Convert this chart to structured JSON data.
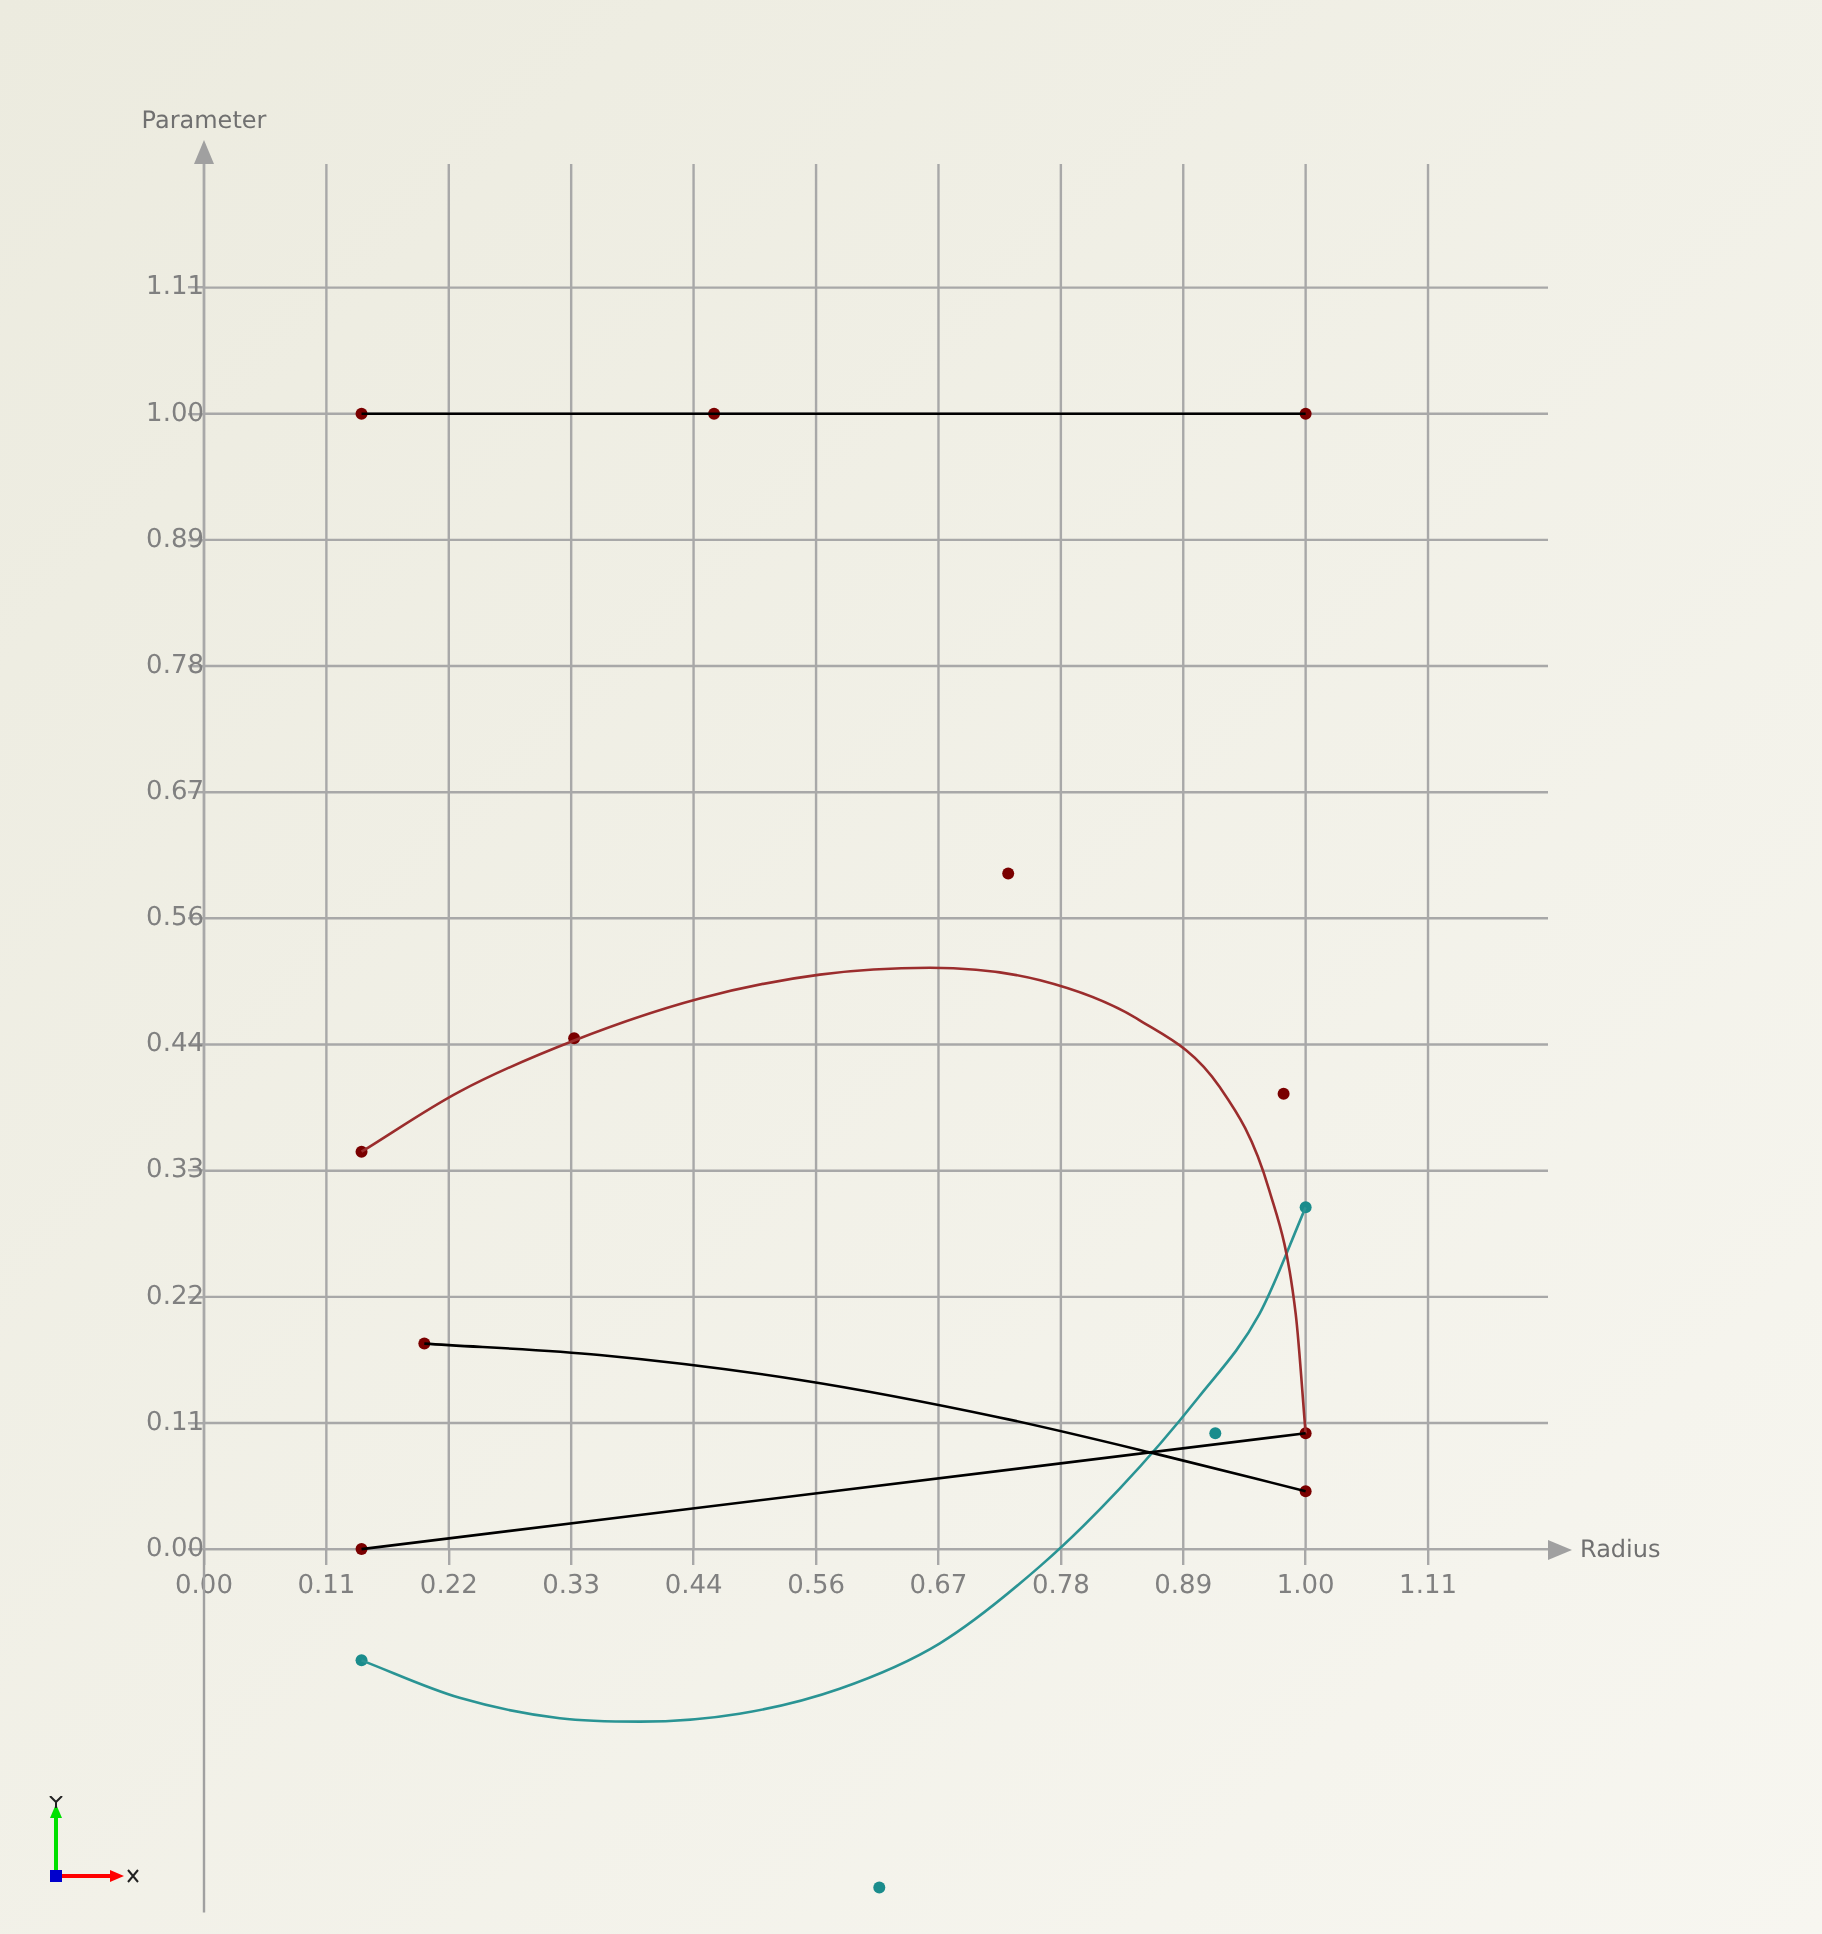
{
  "chart_data": {
    "type": "line",
    "xlabel": "Radius",
    "ylabel": "Parameter",
    "xlim": [
      0,
      1.22
    ],
    "ylim": [
      -0.32,
      1.22
    ],
    "xticks": [
      {
        "value": 0,
        "label": "0.00"
      },
      {
        "value": 0.1111,
        "label": "0.11"
      },
      {
        "value": 0.2222,
        "label": "0.22"
      },
      {
        "value": 0.3333,
        "label": "0.33"
      },
      {
        "value": 0.4444,
        "label": "0.44"
      },
      {
        "value": 0.5556,
        "label": "0.56"
      },
      {
        "value": 0.6667,
        "label": "0.67"
      },
      {
        "value": 0.7778,
        "label": "0.78"
      },
      {
        "value": 0.8889,
        "label": "0.89"
      },
      {
        "value": 1,
        "label": "1.00"
      },
      {
        "value": 1.1111,
        "label": "1.11"
      }
    ],
    "yticks": [
      {
        "value": 0,
        "label": "0.00"
      },
      {
        "value": 0.1111,
        "label": "0.11"
      },
      {
        "value": 0.2222,
        "label": "0.22"
      },
      {
        "value": 0.3333,
        "label": "0.33"
      },
      {
        "value": 0.4444,
        "label": "0.44"
      },
      {
        "value": 0.5556,
        "label": "0.56"
      },
      {
        "value": 0.6667,
        "label": "0.67"
      },
      {
        "value": 0.7778,
        "label": "0.78"
      },
      {
        "value": 0.8889,
        "label": "0.89"
      },
      {
        "value": 1,
        "label": "1.00"
      },
      {
        "value": 1.1111,
        "label": "1.11"
      }
    ],
    "grid": true,
    "legend": false,
    "series": [
      {
        "type": "line",
        "color": "#000000",
        "marker": "none",
        "x": [
          0.143,
          0.463,
          1.0
        ],
        "values": [
          1,
          1,
          1
        ]
      },
      {
        "type": "line",
        "color": "#000000",
        "marker": "none",
        "x": [
          0.143,
          1.0
        ],
        "values": [
          0,
          0.102
        ]
      },
      {
        "type": "line",
        "color": "#000000",
        "marker": "none",
        "x": [
          0.2,
          0.359,
          0.541,
          0.722,
          0.868,
          1.0
        ],
        "values": [
          0.181,
          0.171,
          0.149,
          0.116,
          0.083,
          0.051
        ]
      },
      {
        "type": "line",
        "color": "#9b2d2d",
        "marker": "none",
        "x": [
          0.143,
          0.232,
          0.336,
          0.45,
          0.559,
          0.659,
          0.759,
          0.849,
          0.922,
          0.967,
          0.991,
          1.0
        ],
        "values": [
          0.35,
          0.403,
          0.448,
          0.485,
          0.506,
          0.512,
          0.501,
          0.466,
          0.407,
          0.316,
          0.207,
          0.102
        ]
      },
      {
        "type": "line",
        "color": "#2a9494",
        "marker": "none",
        "x": [
          0.143,
          0.232,
          0.323,
          0.396,
          0.486,
          0.577,
          0.668,
          0.759,
          0.831,
          0.903,
          0.958,
          1.0
        ],
        "values": [
          -0.098,
          -0.131,
          -0.149,
          -0.152,
          -0.145,
          -0.123,
          -0.083,
          -0.015,
          0.053,
          0.134,
          0.207,
          0.301
        ]
      },
      {
        "type": "scatter",
        "color": "#7a0000",
        "marker": "circle",
        "x": [
          0.143,
          0.463,
          1.0,
          0.143,
          0.336,
          0.73,
          0.98,
          1.0,
          0.2,
          1.0,
          0.143
        ],
        "values": [
          1,
          1,
          1,
          0.35,
          0.45,
          0.595,
          0.401,
          0.102,
          0.181,
          0.051,
          0
        ]
      },
      {
        "type": "scatter",
        "color": "#1a8c8c",
        "marker": "circle",
        "x": [
          0.143,
          0.613,
          0.918,
          1.0
        ],
        "values": [
          -0.098,
          -0.298,
          0.102,
          0.301
        ]
      }
    ]
  }
}
